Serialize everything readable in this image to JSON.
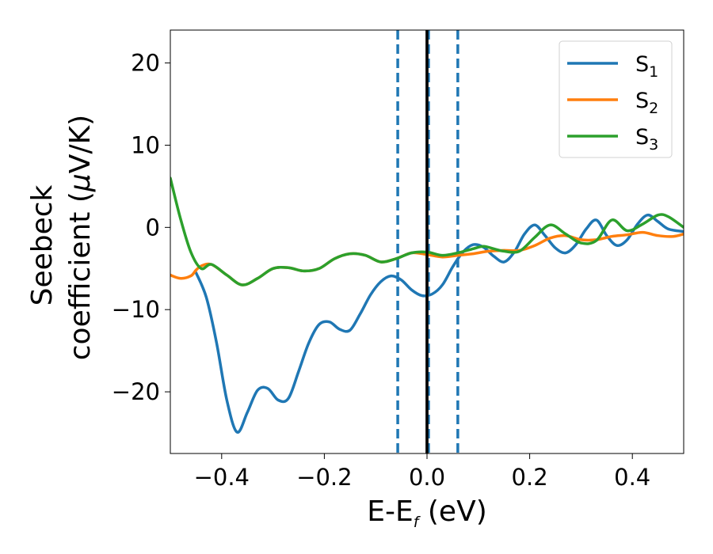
{
  "chart_data": {
    "type": "line",
    "title": "",
    "xlabel": {
      "base": "E-E",
      "subscript": "f",
      "suffix": " (eV)"
    },
    "ylabel": {
      "line1": "Seebeck",
      "line2_prefix": "coefficient  (",
      "mu": "μ",
      "line2_suffix": "V/K)"
    },
    "xlim": [
      -0.5,
      0.5
    ],
    "ylim": [
      -27.5,
      24
    ],
    "xticks": [
      -0.4,
      -0.2,
      0.0,
      0.2,
      0.4
    ],
    "xtick_labels": [
      "−0.4",
      "−0.2",
      "0.0",
      "0.2",
      "0.4"
    ],
    "yticks": [
      -20,
      -10,
      0,
      10,
      20
    ],
    "ytick_labels": [
      "−20",
      "−10",
      "0",
      "10",
      "20"
    ],
    "grid": false,
    "legend_position": "top-right",
    "vlines": [
      {
        "x": -0.057,
        "style": "dashed",
        "color": "#1f77b4"
      },
      {
        "x": 0.0,
        "style": "solid",
        "color": "#000000"
      },
      {
        "x": 0.003,
        "style": "dashed",
        "color": "#1f77b4"
      },
      {
        "x": 0.06,
        "style": "dashed",
        "color": "#1f77b4"
      }
    ],
    "series": [
      {
        "name": {
          "base": "S",
          "sub": "1"
        },
        "color": "#1f77b4",
        "x": [
          -0.45,
          -0.43,
          -0.41,
          -0.39,
          -0.37,
          -0.35,
          -0.33,
          -0.31,
          -0.29,
          -0.27,
          -0.25,
          -0.23,
          -0.21,
          -0.19,
          -0.17,
          -0.15,
          -0.13,
          -0.11,
          -0.09,
          -0.07,
          -0.05,
          -0.03,
          -0.01,
          0.01,
          0.03,
          0.05,
          0.07,
          0.09,
          0.11,
          0.13,
          0.15,
          0.17,
          0.19,
          0.21,
          0.23,
          0.25,
          0.27,
          0.29,
          0.31,
          0.33,
          0.35,
          0.37,
          0.39,
          0.41,
          0.43,
          0.45,
          0.47,
          0.5
        ],
        "y": [
          -5.5,
          -8.5,
          -14,
          -21,
          -24.9,
          -22.5,
          -19.8,
          -19.6,
          -21,
          -20.8,
          -17.5,
          -14,
          -11.8,
          -11.5,
          -12.4,
          -12.5,
          -10.5,
          -8.2,
          -6.6,
          -5.9,
          -6.4,
          -7.6,
          -8.3,
          -8.1,
          -7,
          -4.8,
          -3,
          -2.1,
          -2.4,
          -3.5,
          -4.2,
          -3,
          -0.8,
          0.3,
          -1,
          -2.5,
          -3.1,
          -2.1,
          -0.2,
          0.9,
          -1,
          -2.2,
          -1.5,
          0.4,
          1.5,
          0.7,
          -0.2,
          -0.5
        ]
      },
      {
        "name": {
          "base": "S",
          "sub": "2"
        },
        "color": "#ff7f0e",
        "x": [
          -0.5,
          -0.48,
          -0.46,
          -0.45,
          -0.44,
          -0.42,
          -0.39,
          -0.36,
          -0.33,
          -0.3,
          -0.27,
          -0.24,
          -0.21,
          -0.18,
          -0.15,
          -0.12,
          -0.09,
          -0.06,
          -0.03,
          0,
          0.03,
          0.06,
          0.09,
          0.12,
          0.15,
          0.18,
          0.21,
          0.24,
          0.27,
          0.3,
          0.33,
          0.36,
          0.39,
          0.42,
          0.45,
          0.48,
          0.5
        ],
        "y": [
          -5.8,
          -6.2,
          -5.9,
          -5.2,
          -4.7,
          -4.5,
          -5.8,
          -7,
          -6.2,
          -5,
          -4.9,
          -5.3,
          -5,
          -3.8,
          -3.2,
          -3.4,
          -4.2,
          -3.8,
          -3.1,
          -3.3,
          -3.6,
          -3.4,
          -3.2,
          -2.9,
          -2.8,
          -2.8,
          -2.2,
          -1.3,
          -1,
          -1.5,
          -1.5,
          -1.1,
          -0.9,
          -0.6,
          -1,
          -1.1,
          -0.8
        ]
      },
      {
        "name": {
          "base": "S",
          "sub": "3"
        },
        "color": "#2ca02c",
        "x": [
          -0.5,
          -0.48,
          -0.46,
          -0.44,
          -0.42,
          -0.39,
          -0.36,
          -0.33,
          -0.3,
          -0.27,
          -0.24,
          -0.21,
          -0.18,
          -0.15,
          -0.12,
          -0.09,
          -0.06,
          -0.03,
          0,
          0.03,
          0.06,
          0.09,
          0.11,
          0.13,
          0.15,
          0.18,
          0.21,
          0.24,
          0.27,
          0.3,
          0.33,
          0.36,
          0.39,
          0.42,
          0.45,
          0.47,
          0.5
        ],
        "y": [
          6,
          1,
          -3,
          -5,
          -4.5,
          -5.8,
          -7,
          -6.2,
          -5,
          -4.9,
          -5.3,
          -5,
          -3.8,
          -3.2,
          -3.4,
          -4.2,
          -3.8,
          -3.1,
          -3,
          -3.4,
          -3.1,
          -2.6,
          -2.3,
          -2.6,
          -2.9,
          -2.9,
          -1.2,
          0.3,
          -0.8,
          -1.9,
          -1.6,
          0.9,
          -0.4,
          0.4,
          1.5,
          1.3,
          0
        ]
      }
    ]
  }
}
